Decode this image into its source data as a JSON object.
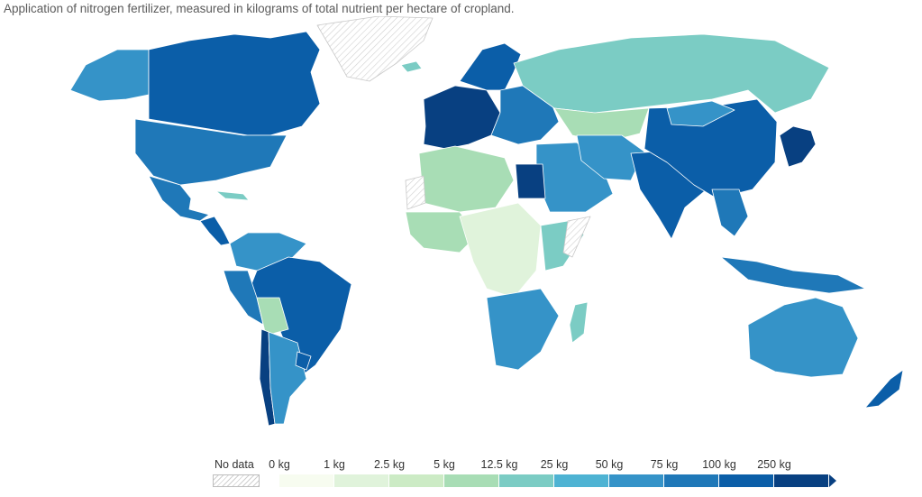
{
  "subtitle": "Application of nitrogen fertilizer, measured in kilograms of total nutrient per hectare of cropland.",
  "legend": {
    "no_data_label": "No data",
    "bins": [
      {
        "label": "0 kg",
        "color": "#f7fcf0"
      },
      {
        "label": "1 kg",
        "color": "#e0f3db"
      },
      {
        "label": "2.5 kg",
        "color": "#ccebc5"
      },
      {
        "label": "5 kg",
        "color": "#a8ddb5"
      },
      {
        "label": "12.5 kg",
        "color": "#7bccc4"
      },
      {
        "label": "25 kg",
        "color": "#4eb3d3"
      },
      {
        "label": "50 kg",
        "color": "#3593c8"
      },
      {
        "label": "75 kg",
        "color": "#1f78b8"
      },
      {
        "label": "100 kg",
        "color": "#0b5ea8"
      },
      {
        "label": "250 kg",
        "color": "#084081"
      }
    ]
  },
  "colors": {
    "ocean": "#ffffff",
    "no_data_hatch": "#cfcfcf",
    "border": "#ffffff"
  },
  "regions": [
    {
      "name": "greenland",
      "bin": -1
    },
    {
      "name": "alaska",
      "bin": 6
    },
    {
      "name": "canada",
      "bin": 8
    },
    {
      "name": "usa",
      "bin": 7
    },
    {
      "name": "mexico",
      "bin": 7
    },
    {
      "name": "central-america",
      "bin": 8
    },
    {
      "name": "caribbean",
      "bin": 4
    },
    {
      "name": "colombia-venezuela",
      "bin": 6
    },
    {
      "name": "brazil",
      "bin": 8
    },
    {
      "name": "peru",
      "bin": 7
    },
    {
      "name": "bolivia",
      "bin": 3
    },
    {
      "name": "chile",
      "bin": 9
    },
    {
      "name": "argentina",
      "bin": 6
    },
    {
      "name": "uruguay",
      "bin": 8
    },
    {
      "name": "western-europe",
      "bin": 9
    },
    {
      "name": "scandinavia",
      "bin": 8
    },
    {
      "name": "iceland",
      "bin": 4
    },
    {
      "name": "eastern-europe",
      "bin": 7
    },
    {
      "name": "russia",
      "bin": 4
    },
    {
      "name": "kazakhstan",
      "bin": 3
    },
    {
      "name": "middle-east",
      "bin": 6
    },
    {
      "name": "iran-afghanistan",
      "bin": 6
    },
    {
      "name": "south-asia",
      "bin": 8
    },
    {
      "name": "china",
      "bin": 8
    },
    {
      "name": "mongolia",
      "bin": 6
    },
    {
      "name": "japan-korea",
      "bin": 9
    },
    {
      "name": "southeast-asia",
      "bin": 7
    },
    {
      "name": "indonesia",
      "bin": 7
    },
    {
      "name": "north-africa",
      "bin": 3
    },
    {
      "name": "egypt",
      "bin": 9
    },
    {
      "name": "west-africa",
      "bin": 3
    },
    {
      "name": "central-africa",
      "bin": 1
    },
    {
      "name": "east-africa",
      "bin": 4
    },
    {
      "name": "southern-africa",
      "bin": 6
    },
    {
      "name": "madagascar",
      "bin": 4
    },
    {
      "name": "australia",
      "bin": 6
    },
    {
      "name": "new-zealand",
      "bin": 8
    },
    {
      "name": "western-sahara",
      "bin": -1
    },
    {
      "name": "somalia",
      "bin": -1
    }
  ]
}
